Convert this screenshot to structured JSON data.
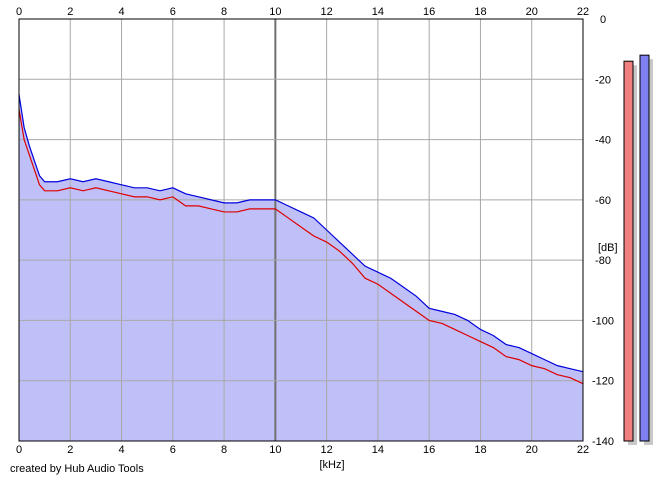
{
  "app": {
    "credit": "created by Hub Audio Tools"
  },
  "chart_data": {
    "type": "line",
    "xlabel": "[kHz]",
    "ylabel": "[dB]",
    "xlim": [
      0,
      22
    ],
    "ylim": [
      -140,
      0
    ],
    "x_ticks": [
      "0",
      "2",
      "4",
      "6",
      "8",
      "10",
      "12",
      "14",
      "16",
      "18",
      "20",
      "22"
    ],
    "y_ticks": [
      "0",
      "-20",
      "-40",
      "-60",
      "-80",
      "-100",
      "-120",
      "-140"
    ],
    "grid": true,
    "fill_color": "#c0c0f8",
    "x": [
      0,
      0.2,
      0.4,
      0.6,
      0.8,
      1,
      1.5,
      2,
      2.5,
      3,
      3.5,
      4,
      4.5,
      5,
      5.5,
      6,
      6.5,
      7,
      7.5,
      8,
      8.5,
      9,
      9.5,
      10,
      10.5,
      11,
      11.5,
      12,
      12.5,
      13,
      13.5,
      14,
      14.5,
      15,
      15.5,
      16,
      16.5,
      17,
      17.5,
      18,
      18.5,
      19,
      19.5,
      20,
      20.5,
      21,
      21.5,
      22
    ],
    "series": [
      {
        "color": "#0000dd",
        "values": [
          -25,
          -36,
          -42,
          -47,
          -52,
          -54,
          -54,
          -53,
          -54,
          -53,
          -54,
          -55,
          -56,
          -56,
          -57,
          -56,
          -58,
          -59,
          -60,
          -61,
          -61,
          -60,
          -60,
          -60,
          -62,
          -64,
          -66,
          -70,
          -74,
          -78,
          -82,
          -84,
          -86,
          -89,
          -92,
          -96,
          -97,
          -98,
          -100,
          -103,
          -105,
          -108,
          -109,
          -111,
          -113,
          -115,
          -116,
          -117
        ]
      },
      {
        "color": "#dd0000",
        "values": [
          -30,
          -40,
          -45,
          -50,
          -55,
          -57,
          -57,
          -56,
          -57,
          -56,
          -57,
          -58,
          -59,
          -59,
          -60,
          -59,
          -62,
          -62,
          -63,
          -64,
          -64,
          -63,
          -63,
          -63,
          -66,
          -69,
          -72,
          -74,
          -77,
          -81,
          -86,
          -88,
          -91,
          -94,
          -97,
          -100,
          -101,
          -103,
          -105,
          -107,
          -109,
          -112,
          -113,
          -115,
          -116,
          -118,
          -119,
          -121
        ]
      }
    ],
    "meters": [
      {
        "color": "#f08080",
        "level_db": -14
      },
      {
        "color": "#8080f0",
        "level_db": -12
      }
    ]
  }
}
